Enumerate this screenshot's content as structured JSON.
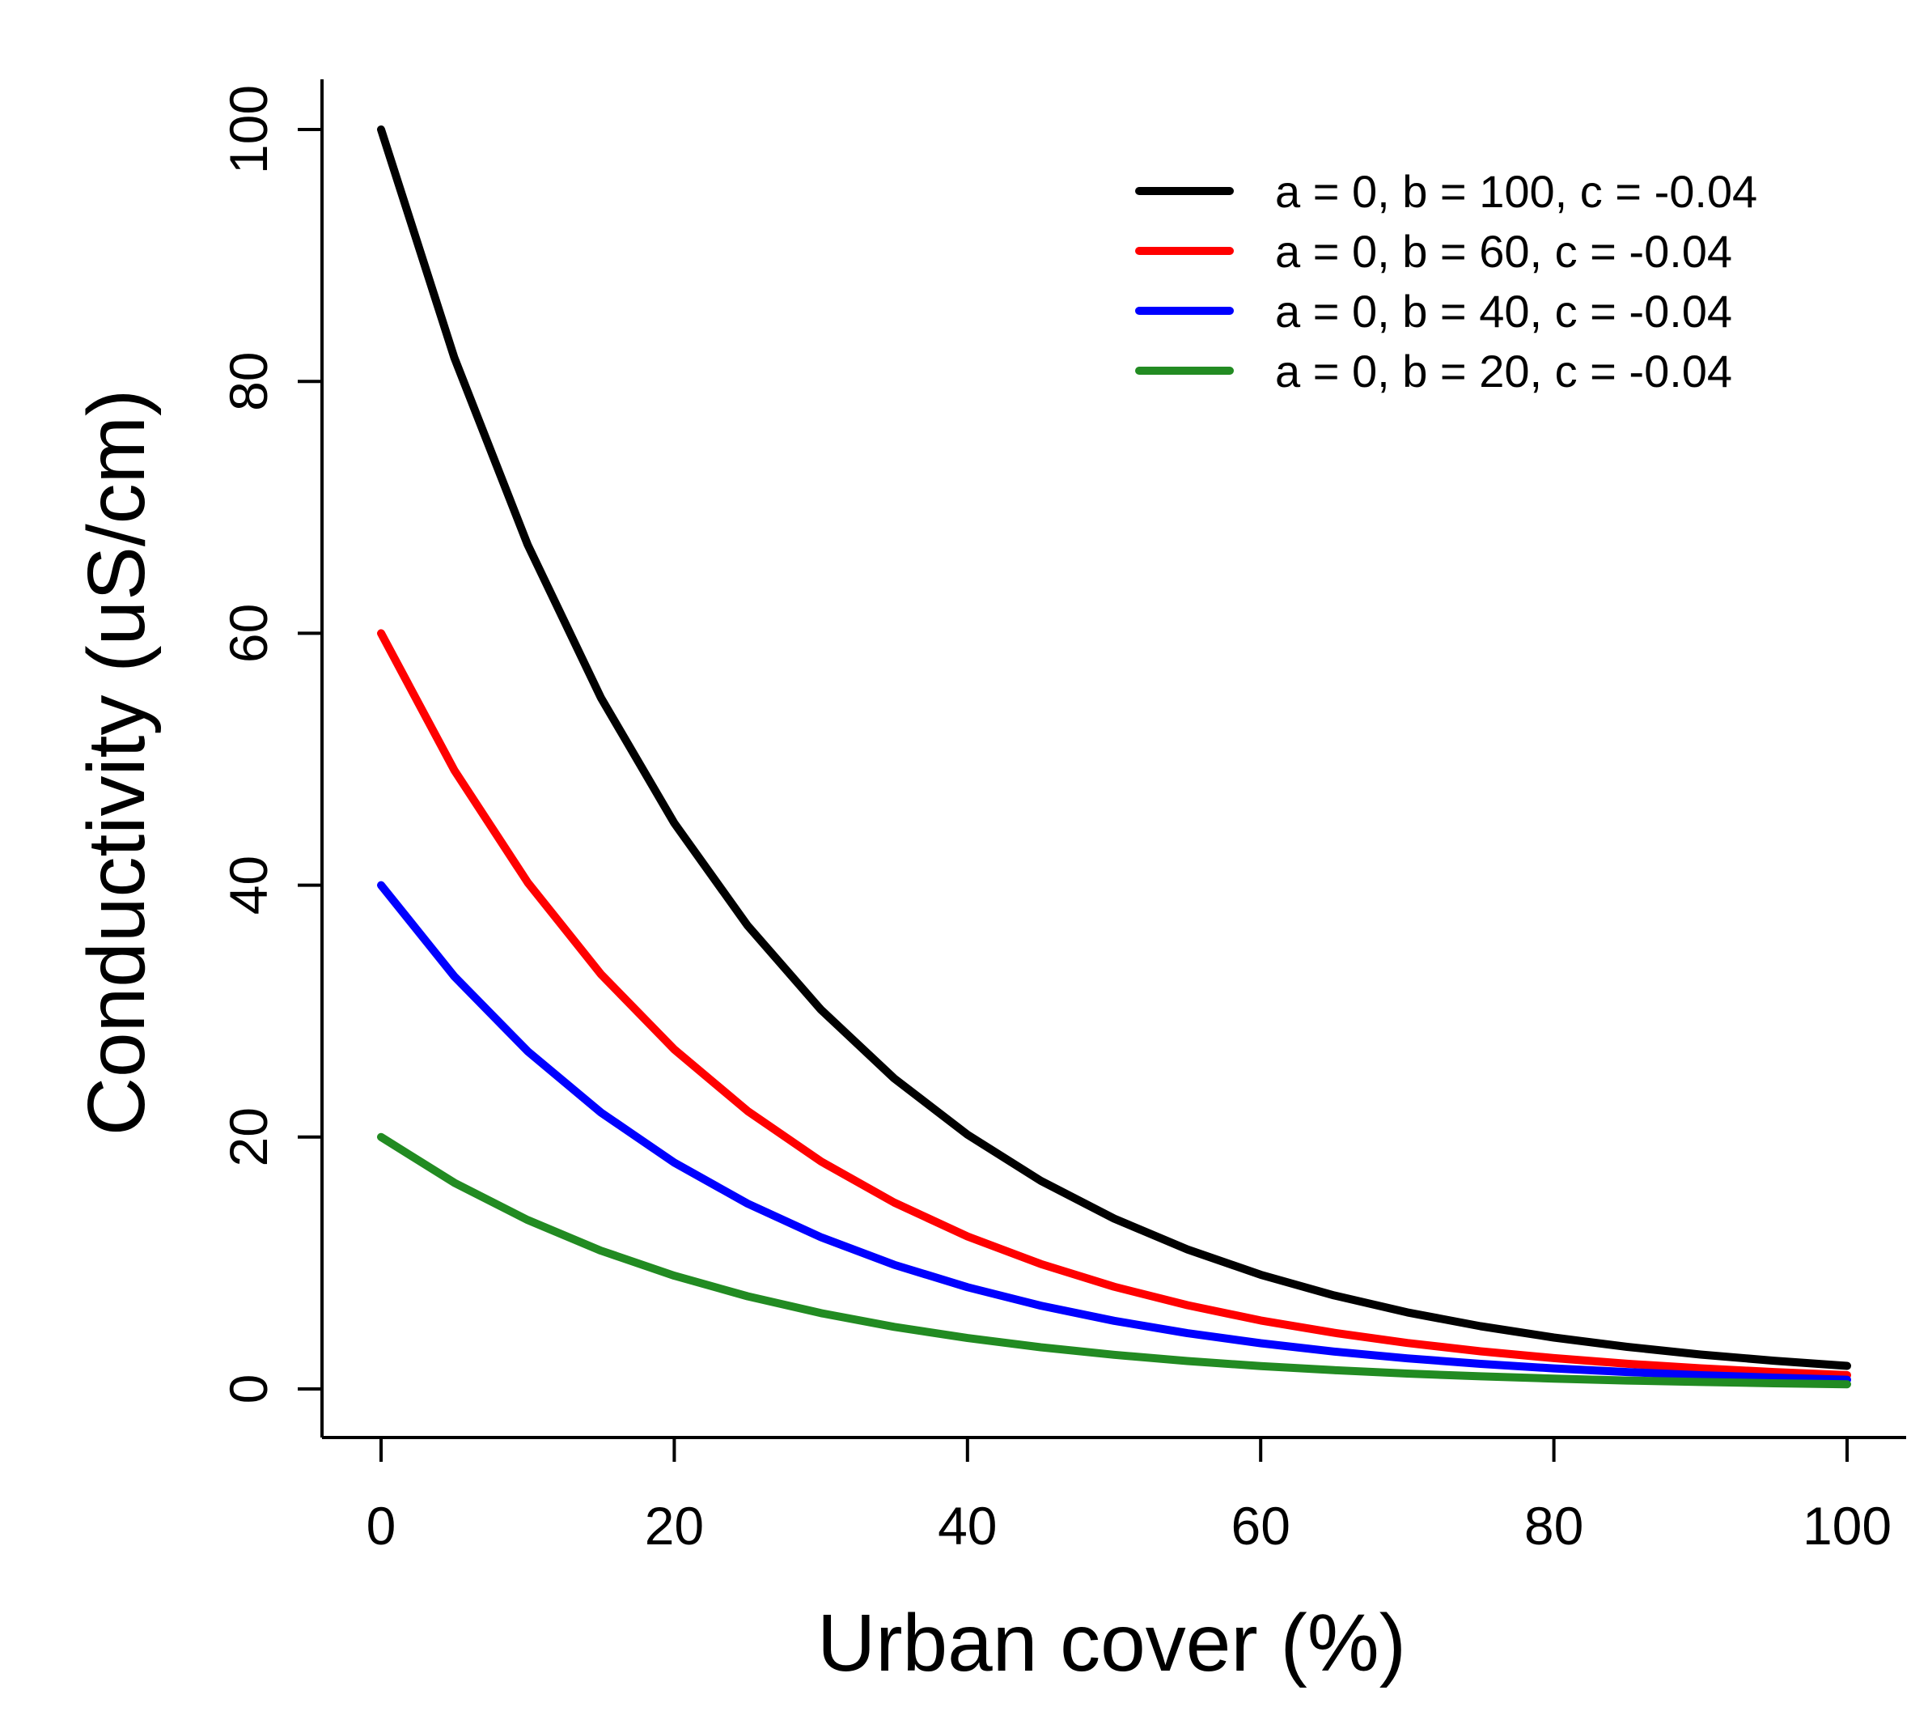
{
  "chart_data": {
    "type": "line",
    "title": "",
    "xlabel": "Urban cover (%)",
    "ylabel": "Conductivity (uS/cm)",
    "xlim": [
      0,
      100
    ],
    "ylim": [
      0,
      100
    ],
    "xticks": [
      0,
      20,
      40,
      60,
      80,
      100
    ],
    "yticks": [
      0,
      20,
      40,
      60,
      80,
      100
    ],
    "xtick_labels": [
      "0",
      "20",
      "40",
      "60",
      "80",
      "100"
    ],
    "ytick_labels": [
      "0",
      "20",
      "40",
      "60",
      "80",
      "100"
    ],
    "grid": false,
    "legend_position": "top-right",
    "x": [
      0,
      5,
      10,
      15,
      20,
      25,
      30,
      35,
      40,
      45,
      50,
      55,
      60,
      65,
      70,
      75,
      80,
      85,
      90,
      95,
      100
    ],
    "series": [
      {
        "name": "a = 0, b = 100, c = -0.04",
        "color": "#000000",
        "values": [
          100,
          81.87,
          67.03,
          54.88,
          44.93,
          36.79,
          30.12,
          24.66,
          20.19,
          16.53,
          13.53,
          11.08,
          9.07,
          7.43,
          6.08,
          4.98,
          4.08,
          3.34,
          2.73,
          2.24,
          1.83
        ]
      },
      {
        "name": "a = 0, b = 60, c = -0.04",
        "color": "#ff0000",
        "values": [
          60,
          49.12,
          40.22,
          32.93,
          26.96,
          22.07,
          18.07,
          14.8,
          12.11,
          9.92,
          8.12,
          6.65,
          5.44,
          4.46,
          3.65,
          2.99,
          2.45,
          2.0,
          1.64,
          1.34,
          1.1
        ]
      },
      {
        "name": "a = 0, b = 40, c = -0.04",
        "color": "#0000ff",
        "values": [
          40,
          32.75,
          26.81,
          21.95,
          17.97,
          14.72,
          12.05,
          9.86,
          8.08,
          6.61,
          5.41,
          4.43,
          3.63,
          2.97,
          2.43,
          1.99,
          1.63,
          1.34,
          1.09,
          0.9,
          0.73
        ]
      },
      {
        "name": "a = 0, b = 20, c = -0.04",
        "color": "#228b22",
        "values": [
          20,
          16.37,
          13.41,
          10.98,
          8.99,
          7.36,
          6.02,
          4.93,
          4.04,
          3.31,
          2.71,
          2.22,
          1.81,
          1.49,
          1.22,
          1.0,
          0.82,
          0.67,
          0.55,
          0.45,
          0.37
        ]
      }
    ]
  }
}
